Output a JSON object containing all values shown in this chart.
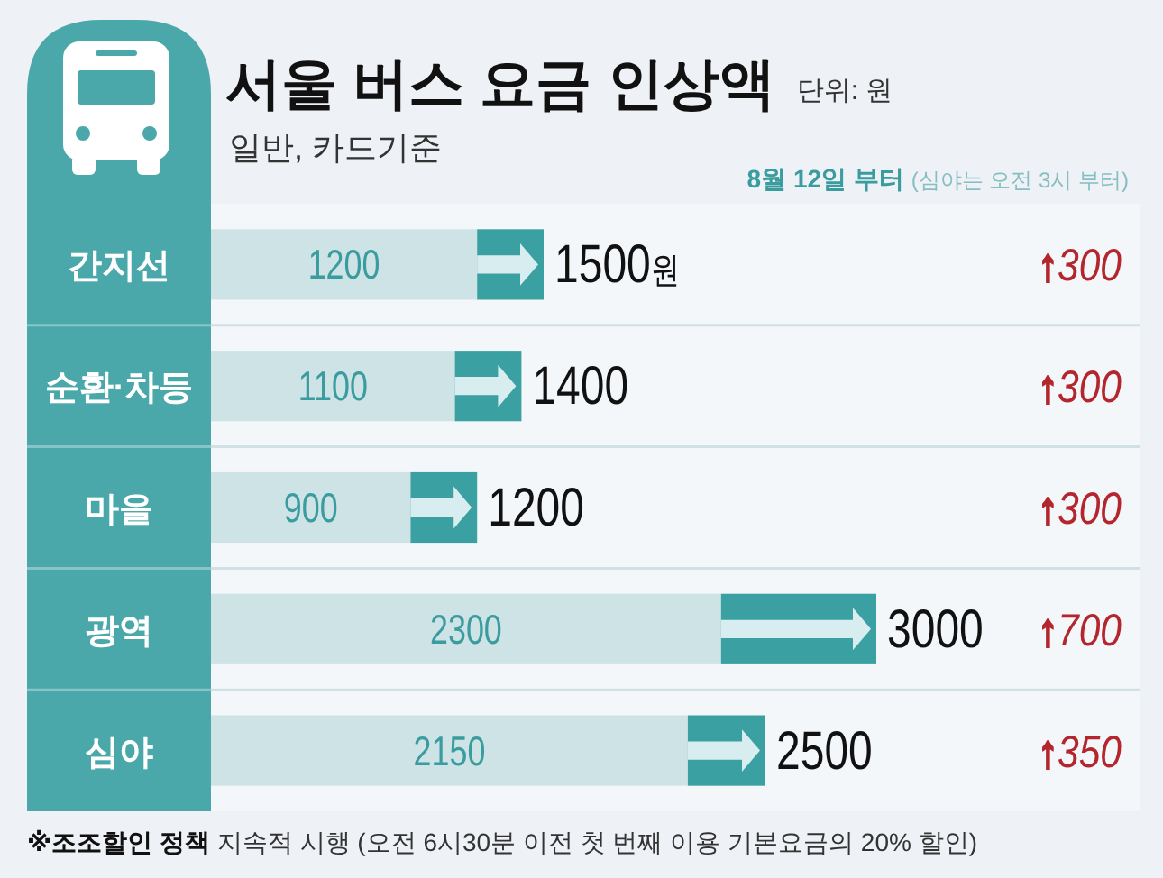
{
  "chart_data": {
    "type": "bar",
    "orientation": "horizontal",
    "stacked": true,
    "title": "서울 버스 요금 인상액",
    "subtitle": "일반, 카드기준",
    "annotations": [
      "단위: 원",
      "8월 12일 부터 (심야는 오전 3시 부터)",
      "※조조할인 정책 지속적 시행 (오전 6시30분 이전 첫 번째 이용 기본요금의 20% 할인)"
    ],
    "categories": [
      "간지선",
      "순환·차등",
      "마을",
      "광역",
      "심야"
    ],
    "series": [
      {
        "color": "#cde3e6",
        "values": [
          1200,
          1100,
          900,
          2300,
          2150
        ],
        "value_labels": [
          "1200",
          "1100",
          "900",
          "2300",
          "2150"
        ]
      },
      {
        "color": "#3aa0a2",
        "values": [
          300,
          300,
          300,
          700,
          350
        ],
        "value_labels": [
          "↑300",
          "↑300",
          "↑300",
          "↑700",
          "↑350"
        ]
      }
    ],
    "totals": [
      "1500원",
      "1400",
      "1200",
      "3000",
      "2500"
    ]
  }
}
